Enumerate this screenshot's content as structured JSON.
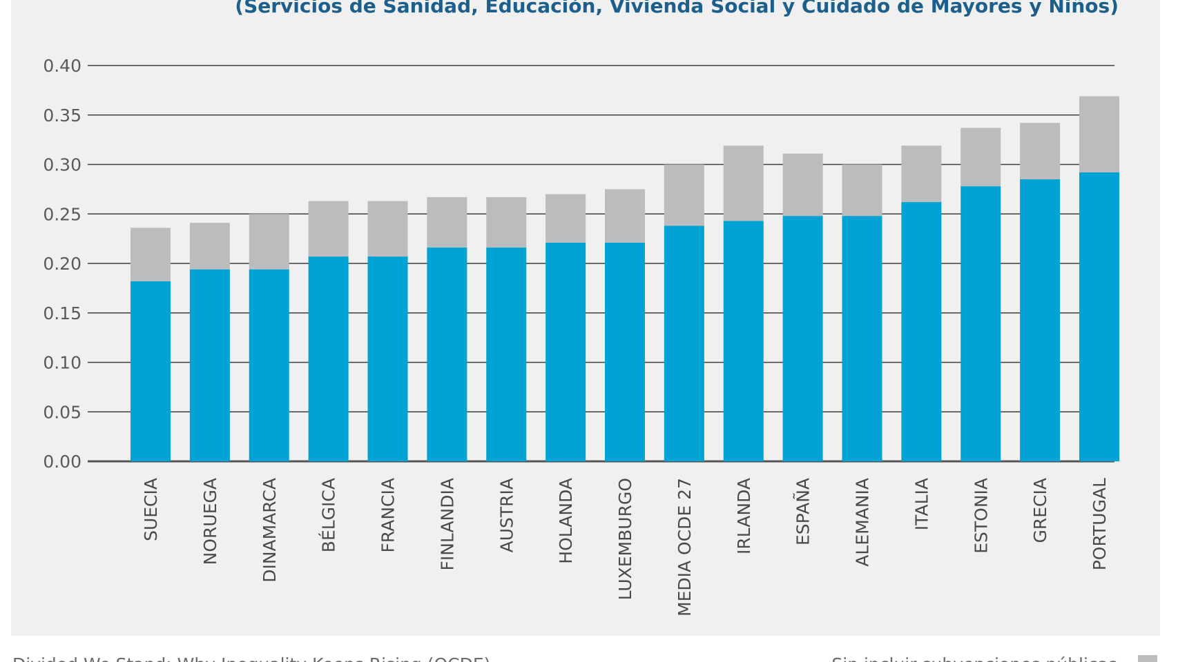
{
  "chart_data": {
    "type": "bar",
    "stacked": true,
    "title": "(Servicios de Sanidad, Educación, Vivienda Social y Cuidado de Mayores y Niños)",
    "xlabel": "",
    "ylabel": "",
    "ylim": [
      0,
      0.4
    ],
    "yticks": [
      "0.00",
      "0.05",
      "0.10",
      "0.15",
      "0.20",
      "0.25",
      "0.30",
      "0.35",
      "0.40"
    ],
    "ytick_values": [
      0,
      0.05,
      0.1,
      0.15,
      0.2,
      0.25,
      0.3,
      0.35,
      0.4
    ],
    "grid": true,
    "categories": [
      "SUECIA",
      "NORUEGA",
      "DINAMARCA",
      "BÉLGICA",
      "FRANCIA",
      "FINLANDIA",
      "AUSTRIA",
      "HOLANDA",
      "LUXEMBURGO",
      "MEDIA OCDE 27",
      "IRLANDA",
      "ESPAÑA",
      "ALEMANIA",
      "ITALIA",
      "ESTONIA",
      "GRECIA",
      "PORTUGAL"
    ],
    "series": [
      {
        "color": "#00a3d3",
        "values": [
          0.182,
          0.194,
          0.194,
          0.207,
          0.207,
          0.216,
          0.216,
          0.221,
          0.221,
          0.238,
          0.243,
          0.248,
          0.248,
          0.262,
          0.278,
          0.285,
          0.292
        ]
      },
      {
        "color": "#bbbcbe",
        "values": [
          0.054,
          0.047,
          0.056,
          0.056,
          0.056,
          0.051,
          0.051,
          0.049,
          0.054,
          0.062,
          0.076,
          0.063,
          0.052,
          0.057,
          0.059,
          0.057,
          0.077
        ]
      }
    ]
  },
  "footer": {
    "source": "Divided We Stand: Why Inequality Keeps Rising (OCDE)",
    "legend_label": "Sin incluir subvenciones públicas"
  },
  "colors": {
    "background": "#eff0ef",
    "grid": "#3d3d3d",
    "axis": "#555555",
    "title": "#1d5f8c"
  }
}
